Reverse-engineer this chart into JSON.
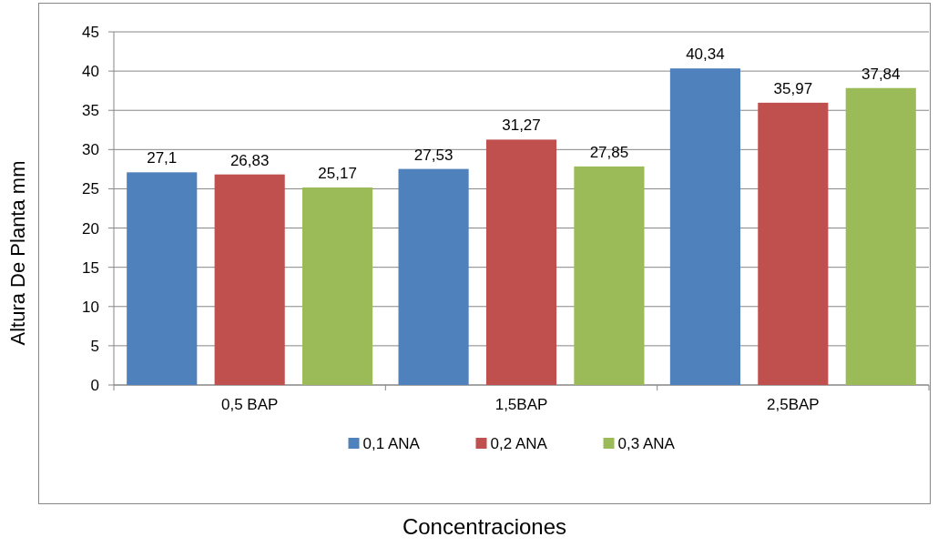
{
  "chart_data": {
    "type": "bar",
    "xlabel": "Concentraciones",
    "ylabel": "Altura De Planta mm",
    "categories": [
      "0,5 BAP",
      "1,5BAP",
      "2,5BAP"
    ],
    "series": [
      {
        "name": "0,1 ANA",
        "color": "#4f81bd",
        "values": [
          27.1,
          27.53,
          40.34
        ],
        "value_labels": [
          "27,1",
          "27,53",
          "40,34"
        ]
      },
      {
        "name": "0,2 ANA",
        "color": "#c0504d",
        "values": [
          26.83,
          31.27,
          35.97
        ],
        "value_labels": [
          "26,83",
          "31,27",
          "35,97"
        ]
      },
      {
        "name": "0,3 ANA",
        "color": "#9bbb59",
        "values": [
          25.17,
          27.85,
          37.84
        ],
        "value_labels": [
          "25,17",
          "27,85",
          "37,84"
        ]
      }
    ],
    "ylim": [
      0,
      45
    ],
    "yticks": [
      0,
      5,
      10,
      15,
      20,
      25,
      30,
      35,
      40,
      45
    ],
    "grid": "y",
    "legend": "bottom"
  }
}
